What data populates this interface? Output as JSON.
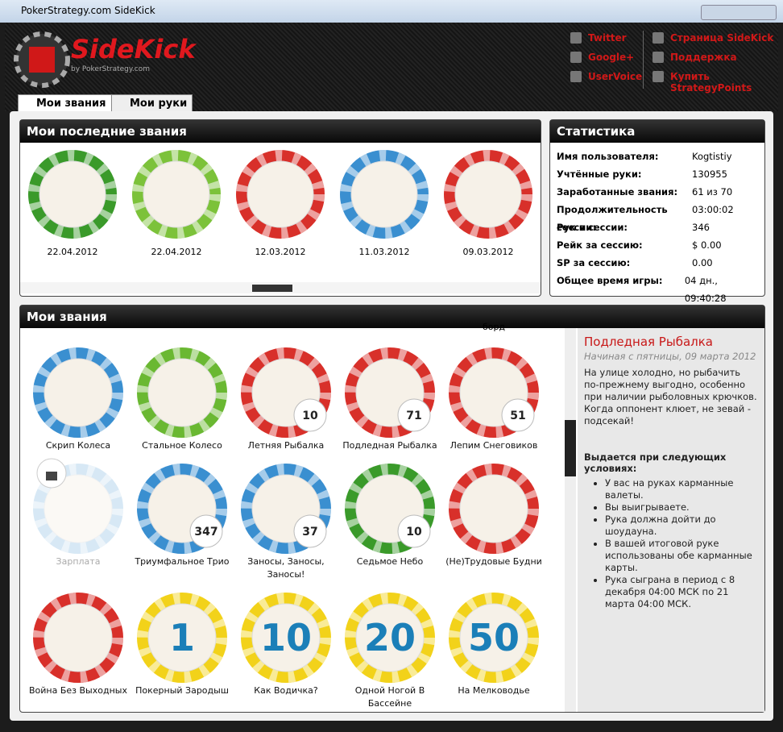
{
  "window": {
    "title": "PokerStrategy.com SideKick"
  },
  "header": {
    "logo": "SideKick",
    "logo_sub": "by PokerStrategy.com",
    "links_left": [
      "Twitter",
      "Google+",
      "UserVoice"
    ],
    "links_right": [
      "Страница SideKick",
      "Поддержка",
      "Купить StrategyPoints"
    ]
  },
  "tabs": [
    "Мои звания",
    "Мои руки"
  ],
  "recent": {
    "title": "Мои последние звания",
    "items": [
      {
        "date": "22.04.2012",
        "ring": "#3a9a2a"
      },
      {
        "date": "22.04.2012",
        "ring": "#7cc23a"
      },
      {
        "date": "12.03.2012",
        "ring": "#d8302a"
      },
      {
        "date": "11.03.2012",
        "ring": "#3a8fd0"
      },
      {
        "date": "09.03.2012",
        "ring": "#d8302a"
      }
    ]
  },
  "stats": {
    "title": "Статистика",
    "rows": [
      [
        "Имя пользователя:",
        "Kogtistiy"
      ],
      [
        "Учтённые руки:",
        130955
      ],
      [
        "Заработанные звания:",
        "61 из 70"
      ],
      [
        "Продолжительность сессии:",
        "03:00:02"
      ],
      [
        "Рук в сессии:",
        346
      ],
      [
        "Рейк за сессию:",
        "$ 0.00"
      ],
      [
        "SP за сессию:",
        "0.00"
      ],
      [
        "Общее время игры:",
        "04 дн., 09:40:28"
      ]
    ]
  },
  "badges": {
    "title": "Мои звания",
    "cut_label": "борд",
    "items": [
      {
        "name": "Скрип Колеса",
        "ring": "#3a8fd0"
      },
      {
        "name": "Стальное Колесо",
        "ring": "#6ab832"
      },
      {
        "name": "Летняя Рыбалка",
        "ring": "#d8302a",
        "count": 10
      },
      {
        "name": "Подледная Рыбалка",
        "ring": "#d8302a",
        "count": 71
      },
      {
        "name": "Лепим Снеговиков",
        "ring": "#d8302a",
        "count": 51
      },
      {
        "name": "Зарплата",
        "ring": "#9cc8e8",
        "locked": true
      },
      {
        "name": "Триумфальное Трио",
        "ring": "#3a8fd0",
        "count": 347
      },
      {
        "name": "Заносы, Заносы, Заносы!",
        "ring": "#3a8fd0",
        "count": 37
      },
      {
        "name": "Седьмое Небо",
        "ring": "#3a9a2a",
        "count": 10
      },
      {
        "name": "(Не)Трудовые Будни",
        "ring": "#d8302a"
      },
      {
        "name": "Война Без Выходных",
        "ring": "#d8302a"
      },
      {
        "name": "Покерный Зародыш",
        "ring": "#f2d21a",
        "chip": "1"
      },
      {
        "name": "Как Водичка?",
        "ring": "#f2d21a",
        "chip": "10"
      },
      {
        "name": "Одной Ногой В Бассейне",
        "ring": "#f2d21a",
        "chip": "20"
      },
      {
        "name": "На Мелководье",
        "ring": "#f2d21a",
        "chip": "50"
      }
    ]
  },
  "detail": {
    "title": "Подледная Рыбалка",
    "subtitle": "Начиная с пятницы, 09 марта 2012",
    "description": "На улице холодно, но рыбачить по-прежнему выгодно, особенно при наличии рыболовных крючков. Когда оппонент клюет, не зевай - подсекай!",
    "conditions_title": "Выдается при следующих условиях:",
    "conditions": [
      "У вас на руках карманные валеты.",
      "Вы выигрываете.",
      "Рука должна дойти до шоудауна.",
      "В вашей итоговой руке использованы обе карманные карты.",
      "Рука сыграна в период с 8 декабря 04:00 МСК по 21 марта 04:00 МСК."
    ]
  }
}
